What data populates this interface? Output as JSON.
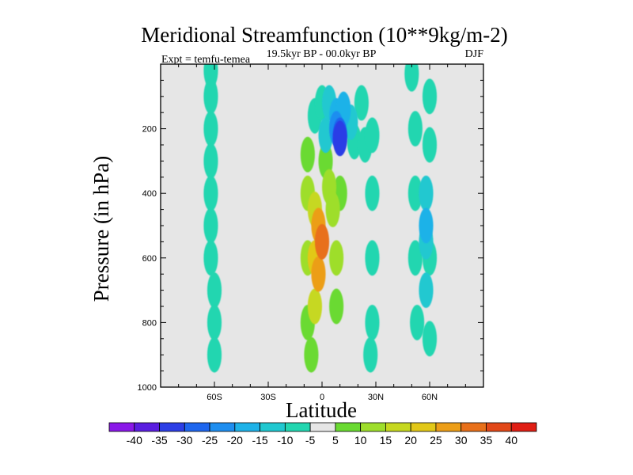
{
  "chart_data": {
    "type": "contour",
    "title": "Meridional Streamfunction (10**9kg/m-2)",
    "subtitle": "19.5kyr BP - 00.0kyr BP",
    "left_annotation": "Expt = temfu-temea",
    "right_annotation": "DJF",
    "xlabel": "Latitude",
    "ylabel": "Pressure (in hPa)",
    "x_range": [
      -90,
      90
    ],
    "y_range": [
      0,
      1000
    ],
    "y_inverted": true,
    "x_ticks": [
      {
        "value": -60,
        "label": "60S"
      },
      {
        "value": -30,
        "label": "30S"
      },
      {
        "value": 0,
        "label": "0"
      },
      {
        "value": 30,
        "label": "30N"
      },
      {
        "value": 60,
        "label": "60N"
      }
    ],
    "y_ticks": [
      {
        "value": 200,
        "label": "200"
      },
      {
        "value": 400,
        "label": "400"
      },
      {
        "value": 600,
        "label": "600"
      },
      {
        "value": 800,
        "label": "800"
      },
      {
        "value": 1000,
        "label": "1000"
      }
    ],
    "colorbar": {
      "labels": [
        "-40",
        "-35",
        "-30",
        "-25",
        "-20",
        "-15",
        "-10",
        "-5",
        "5",
        "10",
        "15",
        "20",
        "25",
        "30",
        "35",
        "40"
      ],
      "colors": [
        "#8a18e8",
        "#5a1ee0",
        "#2c3ee6",
        "#1e66ee",
        "#1e8ef0",
        "#1eb2e8",
        "#20c8d0",
        "#22d6b0",
        "#e6e6e6",
        "#6ada32",
        "#9ede2c",
        "#c6d820",
        "#e2c818",
        "#ec9e18",
        "#e8701a",
        "#e24818",
        "#e01e14"
      ]
    },
    "cells": [
      {
        "lat": -72,
        "p": 30,
        "value": 5
      },
      {
        "lat": -72,
        "p": 200,
        "value": 5
      },
      {
        "lat": -72,
        "p": 300,
        "value": 5
      },
      {
        "lat": -72,
        "p": 400,
        "value": 5
      },
      {
        "lat": -72,
        "p": 500,
        "value": 5
      },
      {
        "lat": -62,
        "p": 20,
        "value": -5
      },
      {
        "lat": -62,
        "p": 100,
        "value": -5
      },
      {
        "lat": -62,
        "p": 200,
        "value": -5
      },
      {
        "lat": -62,
        "p": 300,
        "value": -5
      },
      {
        "lat": -62,
        "p": 400,
        "value": -5
      },
      {
        "lat": -62,
        "p": 500,
        "value": -5
      },
      {
        "lat": -62,
        "p": 600,
        "value": -5
      },
      {
        "lat": -60,
        "p": 700,
        "value": -5
      },
      {
        "lat": -60,
        "p": 800,
        "value": -5
      },
      {
        "lat": -60,
        "p": 900,
        "value": -5
      },
      {
        "lat": -50,
        "p": 50,
        "value": 5
      },
      {
        "lat": -50,
        "p": 130,
        "value": 5
      },
      {
        "lat": -36,
        "p": 400,
        "value": 5
      },
      {
        "lat": -36,
        "p": 500,
        "value": 5
      },
      {
        "lat": -36,
        "p": 600,
        "value": 5
      },
      {
        "lat": -36,
        "p": 700,
        "value": 5
      },
      {
        "lat": -36,
        "p": 800,
        "value": 5
      },
      {
        "lat": -36,
        "p": 900,
        "value": 5
      },
      {
        "lat": -22,
        "p": 200,
        "value": 5
      },
      {
        "lat": -18,
        "p": 300,
        "value": 5
      },
      {
        "lat": -16,
        "p": 500,
        "value": 5
      },
      {
        "lat": -15,
        "p": 700,
        "value": 5
      },
      {
        "lat": -14,
        "p": 900,
        "value": 5
      },
      {
        "lat": -10,
        "p": 200,
        "value": 5
      },
      {
        "lat": -8,
        "p": 280,
        "value": 10
      },
      {
        "lat": -8,
        "p": 400,
        "value": 15
      },
      {
        "lat": -8,
        "p": 600,
        "value": 15
      },
      {
        "lat": -8,
        "p": 800,
        "value": 10
      },
      {
        "lat": -6,
        "p": 900,
        "value": 10
      },
      {
        "lat": -4,
        "p": 450,
        "value": 20
      },
      {
        "lat": -4,
        "p": 600,
        "value": 25
      },
      {
        "lat": -4,
        "p": 750,
        "value": 20
      },
      {
        "lat": -2,
        "p": 500,
        "value": 30
      },
      {
        "lat": -2,
        "p": 650,
        "value": 30
      },
      {
        "lat": 0,
        "p": 550,
        "value": 35
      },
      {
        "lat": 2,
        "p": 300,
        "value": 10
      },
      {
        "lat": 4,
        "p": 380,
        "value": 15
      },
      {
        "lat": 6,
        "p": 450,
        "value": 15
      },
      {
        "lat": 8,
        "p": 600,
        "value": 15
      },
      {
        "lat": 8,
        "p": 750,
        "value": 10
      },
      {
        "lat": 10,
        "p": 400,
        "value": 10
      },
      {
        "lat": 12,
        "p": 500,
        "value": 5
      },
      {
        "lat": 12,
        "p": 700,
        "value": 5
      },
      {
        "lat": 12,
        "p": 900,
        "value": 5
      },
      {
        "lat": 16,
        "p": 400,
        "value": 5
      },
      {
        "lat": 16,
        "p": 600,
        "value": 5
      },
      {
        "lat": 16,
        "p": 800,
        "value": 5
      },
      {
        "lat": -4,
        "p": 160,
        "value": -5
      },
      {
        "lat": 0,
        "p": 120,
        "value": -5
      },
      {
        "lat": 2,
        "p": 220,
        "value": -10
      },
      {
        "lat": 4,
        "p": 120,
        "value": -10
      },
      {
        "lat": 8,
        "p": 160,
        "value": -15
      },
      {
        "lat": 12,
        "p": 140,
        "value": -15
      },
      {
        "lat": 8,
        "p": 200,
        "value": -20
      },
      {
        "lat": 10,
        "p": 220,
        "value": -25
      },
      {
        "lat": 10,
        "p": 230,
        "value": -30
      },
      {
        "lat": 16,
        "p": 180,
        "value": -10
      },
      {
        "lat": 18,
        "p": 240,
        "value": -5
      },
      {
        "lat": 22,
        "p": 120,
        "value": -5
      },
      {
        "lat": 24,
        "p": 250,
        "value": -5
      },
      {
        "lat": 28,
        "p": 220,
        "value": -5
      },
      {
        "lat": 28,
        "p": 400,
        "value": -5
      },
      {
        "lat": 28,
        "p": 600,
        "value": -5
      },
      {
        "lat": 28,
        "p": 800,
        "value": -5
      },
      {
        "lat": 27,
        "p": 900,
        "value": -5
      },
      {
        "lat": 42,
        "p": 890,
        "value": 5
      },
      {
        "lat": 50,
        "p": 30,
        "value": -5
      },
      {
        "lat": 52,
        "p": 200,
        "value": -5
      },
      {
        "lat": 52,
        "p": 400,
        "value": -5
      },
      {
        "lat": 52,
        "p": 600,
        "value": -5
      },
      {
        "lat": 53,
        "p": 800,
        "value": -5
      },
      {
        "lat": 60,
        "p": 100,
        "value": -5
      },
      {
        "lat": 60,
        "p": 250,
        "value": -5
      },
      {
        "lat": 60,
        "p": 600,
        "value": -5
      },
      {
        "lat": 60,
        "p": 850,
        "value": -5
      },
      {
        "lat": 58,
        "p": 400,
        "value": -10
      },
      {
        "lat": 58,
        "p": 550,
        "value": -10
      },
      {
        "lat": 58,
        "p": 700,
        "value": -10
      },
      {
        "lat": 58,
        "p": 500,
        "value": -15
      }
    ]
  }
}
